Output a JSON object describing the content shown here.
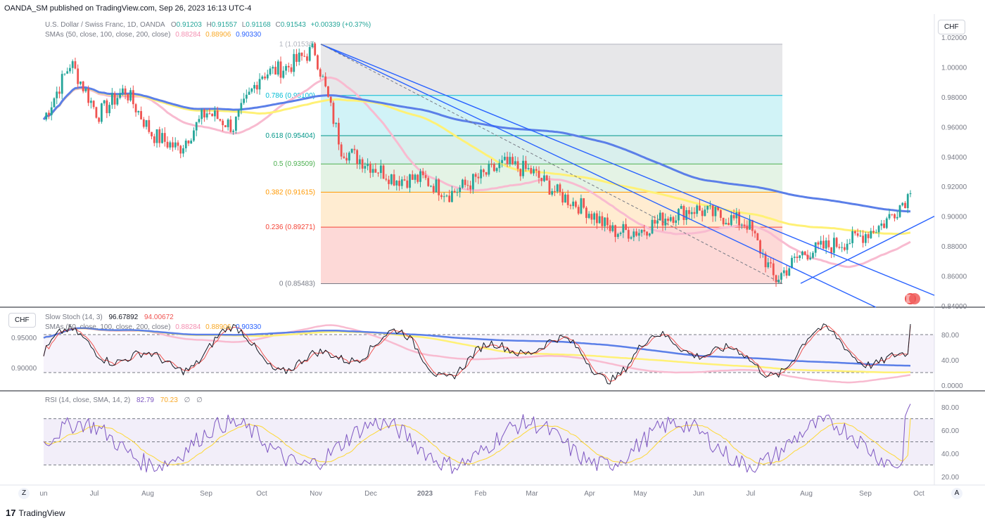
{
  "header": {
    "publisher": "OANDA_SM published on TradingView.com, Sep 26, 2023 16:13 UTC-4"
  },
  "main_legend": {
    "symbol": "U.S. Dollar / Swiss Franc, 1D, OANDA",
    "o_label": "O",
    "o_value": "0.91203",
    "h_label": "H",
    "h_value": "0.91557",
    "l_label": "L",
    "l_value": "0.91168",
    "c_label": "C",
    "c_value": "0.91543",
    "change": "+0.00339 (+0.37%)",
    "sma_label": "SMAs (50, close, 100, close, 200, close)",
    "sma50": "0.88284",
    "sma100": "0.88906",
    "sma200": "0.90330"
  },
  "stoch_legend": {
    "label": "Slow Stoch (14, 3)",
    "k": "96.67892",
    "d": "94.00672"
  },
  "stoch_sma_legend": {
    "label": "SMAs (50, close, 100, close, 200, close)",
    "sma50": "0.88284",
    "sma100": "0.88906",
    "sma200": "0.90330"
  },
  "rsi_legend": {
    "label": "RSI (14, close, SMA, 14, 2)",
    "rsi": "82.79",
    "sma": "70.23",
    "extra1": "∅",
    "extra2": "∅"
  },
  "currency_button": "CHF",
  "stoch_currency_button": "CHF",
  "footer": {
    "brand": "TradingView",
    "logo": "17"
  },
  "buttons": {
    "zoom": "Z",
    "auto": "A"
  },
  "colors": {
    "up": "#26a69a",
    "down": "#ef5350",
    "sma50": "#f8bbd0",
    "sma100": "#fff176",
    "sma200": "#5b7fe8",
    "trendline": "#2962ff",
    "stoch_k": "#131722",
    "stoch_d": "#ef5350",
    "rsi": "#7e57c2",
    "rsi_sma": "#fdd835"
  },
  "chart_data": [
    {
      "type": "candlestick",
      "title": "U.S. Dollar / Swiss Franc, 1D, OANDA",
      "x_ticks": [
        "un",
        "Jul",
        "Aug",
        "Sep",
        "Oct",
        "Nov",
        "Dec",
        "2023",
        "Feb",
        "Mar",
        "Apr",
        "May",
        "Jun",
        "Jul",
        "Aug",
        "Sep",
        "Oct"
      ],
      "y_ticks": [
        "1.02000",
        "1.00000",
        "0.98000",
        "0.96000",
        "0.94000",
        "0.92000",
        "0.90000",
        "0.88000",
        "0.86000",
        "0.84000"
      ],
      "ylim": [
        0.84,
        1.02
      ],
      "fibonacci": [
        {
          "level": "1",
          "price": "1.01536"
        },
        {
          "level": "0.786",
          "price": "0.98100"
        },
        {
          "level": "0.618",
          "price": "0.95404"
        },
        {
          "level": "0.5",
          "price": "0.93509"
        },
        {
          "level": "0.382",
          "price": "0.91615"
        },
        {
          "level": "0.236",
          "price": "0.89271"
        },
        {
          "level": "0",
          "price": "0.85483"
        }
      ],
      "close_approx": [
        {
          "m": "Jun 2022",
          "v": 0.965
        },
        {
          "m": "Jun mid",
          "v": 1.003
        },
        {
          "m": "Jul",
          "v": 0.968
        },
        {
          "m": "Jul mid",
          "v": 0.985
        },
        {
          "m": "Aug",
          "v": 0.955
        },
        {
          "m": "Aug mid",
          "v": 0.945
        },
        {
          "m": "Sep",
          "v": 0.97
        },
        {
          "m": "Sep mid",
          "v": 0.96
        },
        {
          "m": "Oct",
          "v": 0.995
        },
        {
          "m": "Oct mid",
          "v": 1.0
        },
        {
          "m": "Nov",
          "v": 1.012
        },
        {
          "m": "Nov mid",
          "v": 0.945
        },
        {
          "m": "Dec",
          "v": 0.935
        },
        {
          "m": "Dec mid",
          "v": 0.925
        },
        {
          "m": "Jan 2023",
          "v": 0.925
        },
        {
          "m": "Jan mid",
          "v": 0.915
        },
        {
          "m": "Feb",
          "v": 0.925
        },
        {
          "m": "Feb mid",
          "v": 0.935
        },
        {
          "m": "Mar",
          "v": 0.93
        },
        {
          "m": "Mar mid",
          "v": 0.915
        },
        {
          "m": "Apr",
          "v": 0.905
        },
        {
          "m": "Apr mid",
          "v": 0.89
        },
        {
          "m": "May",
          "v": 0.89
        },
        {
          "m": "May mid",
          "v": 0.9
        },
        {
          "m": "Jun",
          "v": 0.905
        },
        {
          "m": "Jun mid",
          "v": 0.9
        },
        {
          "m": "Jul",
          "v": 0.895
        },
        {
          "m": "Jul mid",
          "v": 0.857
        },
        {
          "m": "Aug",
          "v": 0.875
        },
        {
          "m": "Aug mid",
          "v": 0.88
        },
        {
          "m": "Sep",
          "v": 0.885
        },
        {
          "m": "Sep mid",
          "v": 0.895
        },
        {
          "m": "Sep end",
          "v": 0.91543
        }
      ],
      "sma50_last": 0.88284,
      "sma100_last": 0.88906,
      "sma200_last": 0.9033
    },
    {
      "type": "line",
      "title": "Slow Stoch (14, 3)",
      "y_ticks": [
        "80.00",
        "40.00",
        "0.0000"
      ],
      "left_ticks": [
        "0.95000",
        "0.90000"
      ],
      "bands": [
        80,
        20
      ],
      "k_last": 96.67892,
      "d_last": 94.00672
    },
    {
      "type": "line",
      "title": "RSI (14, close, SMA, 14, 2)",
      "y_ticks": [
        "80.00",
        "60.00",
        "40.00",
        "20.00"
      ],
      "bands": [
        70,
        50,
        30
      ],
      "rsi_last": 82.79,
      "sma_last": 70.23
    }
  ]
}
